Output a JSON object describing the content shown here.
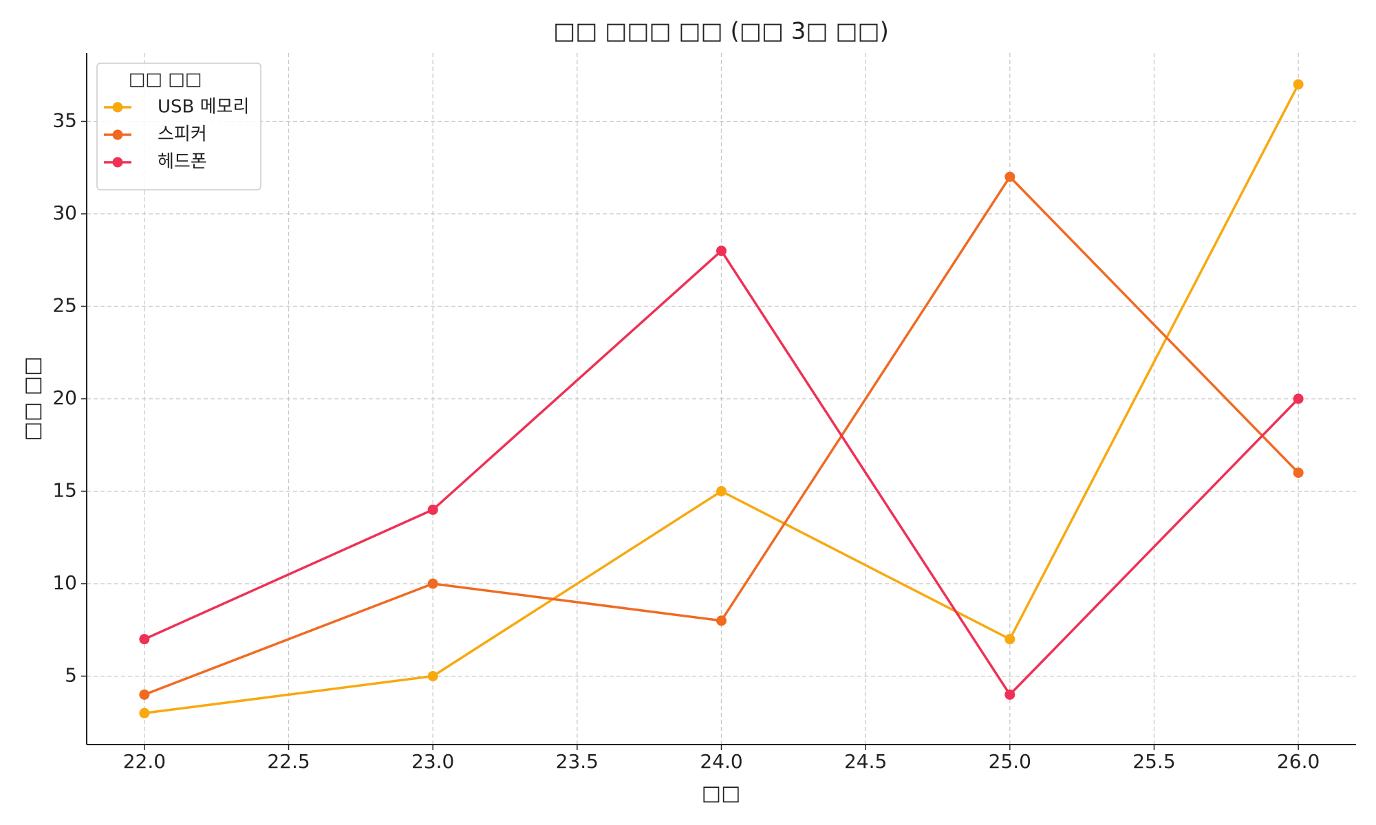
{
  "chart_data": {
    "type": "line",
    "title": "□□ □□□ □□ (□□ 3□ □□)",
    "x_label": "□□",
    "y_label": "□□ □□",
    "x": [
      22,
      23,
      24,
      25,
      26
    ],
    "series": [
      {
        "name": "USB 메모리",
        "color": "#f7a90f",
        "values": [
          3,
          5,
          15,
          7,
          37
        ]
      },
      {
        "name": "스피커",
        "color": "#f06a22",
        "values": [
          4,
          10,
          8,
          32,
          16
        ]
      },
      {
        "name": "헤드폰",
        "color": "#ee3155",
        "values": [
          7,
          14,
          28,
          4,
          20
        ]
      }
    ],
    "legend_title": "□□ □□",
    "legend": "upper left",
    "xlim": [
      21.8,
      26.2
    ],
    "ylim": [
      1.3,
      38.7
    ],
    "xticks": [
      {
        "value": 22,
        "label": "22.0"
      },
      {
        "value": 22.5,
        "label": "22.5"
      },
      {
        "value": 23,
        "label": "23.0"
      },
      {
        "value": 23.5,
        "label": "23.5"
      },
      {
        "value": 24,
        "label": "24.0"
      },
      {
        "value": 24.5,
        "label": "24.5"
      },
      {
        "value": 25,
        "label": "25.0"
      },
      {
        "value": 25.5,
        "label": "25.5"
      },
      {
        "value": 26,
        "label": "26.0"
      }
    ],
    "yticks": [
      5,
      10,
      15,
      20,
      25,
      30,
      35
    ],
    "grid": true
  }
}
